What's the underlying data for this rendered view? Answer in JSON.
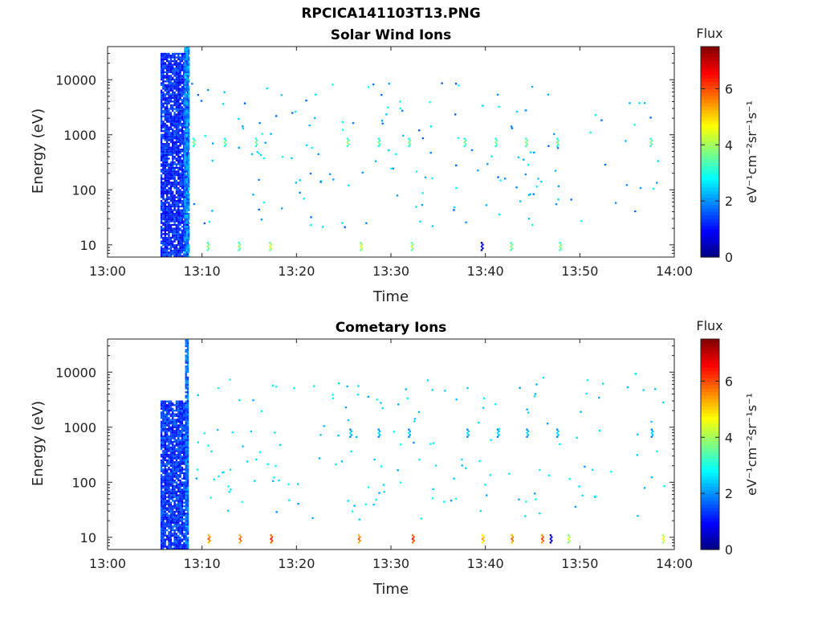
{
  "figure": {
    "title": "RPCICA141103T13.PNG"
  },
  "colorbar": {
    "label": "Flux",
    "unit_label": "eV⁻¹cm⁻²sr⁻¹s⁻¹",
    "min": 0,
    "max": 7.5,
    "ticks": [
      0,
      2,
      4,
      6
    ],
    "colormap": "jet",
    "colors": [
      "#00007f",
      "#0000ff",
      "#007fff",
      "#00ffff",
      "#7fff7f",
      "#ffff00",
      "#ff7f00",
      "#ff0000",
      "#7f0000"
    ]
  },
  "chart_data": [
    {
      "type": "heatmap",
      "title": "Solar Wind Ions",
      "xlabel": "Time",
      "ylabel": "Energy (eV)",
      "x_ticks": [
        "13:00",
        "13:10",
        "13:20",
        "13:30",
        "13:40",
        "13:50",
        "14:00"
      ],
      "xlim_min": [
        0,
        60
      ],
      "y_scale": "log",
      "y_ticks": [
        10,
        100,
        1000,
        10000
      ],
      "y_tick_labels": [
        "10",
        "100",
        "1000",
        "10000"
      ],
      "ylim": [
        6,
        40000
      ],
      "grid": false,
      "features": [
        {
          "t_start": 5.6,
          "t_end": 8.6,
          "e_low": 6,
          "e_high": 30000,
          "flux": 1.2,
          "kind": "burst"
        },
        {
          "t_start": 8.1,
          "t_end": 8.6,
          "e_low": 6,
          "e_high": 40000,
          "flux": 2.0,
          "kind": "burst"
        },
        {
          "t": 9.0,
          "e": 700,
          "flux": 3.8
        },
        {
          "t": 12.3,
          "e": 700,
          "flux": 3.8
        },
        {
          "t": 15.6,
          "e": 700,
          "flux": 3.8
        },
        {
          "t": 25.3,
          "e": 700,
          "flux": 4.0
        },
        {
          "t": 28.6,
          "e": 700,
          "flux": 3.8
        },
        {
          "t": 31.8,
          "e": 700,
          "flux": 3.8
        },
        {
          "t": 37.7,
          "e": 700,
          "flux": 3.8
        },
        {
          "t": 41.0,
          "e": 700,
          "flux": 3.8
        },
        {
          "t": 44.2,
          "e": 700,
          "flux": 4.0
        },
        {
          "t": 47.5,
          "e": 700,
          "flux": 3.8
        },
        {
          "t": 57.4,
          "e": 700,
          "flux": 3.8
        },
        {
          "t": 10.5,
          "e": 9,
          "flux": 4.0
        },
        {
          "t": 13.8,
          "e": 9,
          "flux": 4.0
        },
        {
          "t": 17.1,
          "e": 9,
          "flux": 4.5
        },
        {
          "t": 26.7,
          "e": 9,
          "flux": 4.5
        },
        {
          "t": 32.1,
          "e": 9,
          "flux": 4.3
        },
        {
          "t": 39.5,
          "e": 9,
          "flux": 1.0
        },
        {
          "t": 42.6,
          "e": 9,
          "flux": 4.0
        },
        {
          "t": 47.8,
          "e": 9,
          "flux": 4.0
        }
      ]
    },
    {
      "type": "heatmap",
      "title": "Cometary Ions",
      "xlabel": "Time",
      "ylabel": "Energy (eV)",
      "x_ticks": [
        "13:00",
        "13:10",
        "13:20",
        "13:30",
        "13:40",
        "13:50",
        "14:00"
      ],
      "xlim_min": [
        0,
        60
      ],
      "y_scale": "log",
      "y_ticks": [
        10,
        100,
        1000,
        10000
      ],
      "y_tick_labels": [
        "10",
        "100",
        "1000",
        "10000"
      ],
      "ylim": [
        6,
        40000
      ],
      "grid": false,
      "features": [
        {
          "t_start": 5.6,
          "t_end": 8.6,
          "e_low": 6,
          "e_high": 3000,
          "flux": 1.3,
          "kind": "burst"
        },
        {
          "t_start": 8.2,
          "t_end": 8.6,
          "e_low": 6,
          "e_high": 40000,
          "flux": 1.8,
          "kind": "burst"
        },
        {
          "t": 10.6,
          "e": 9,
          "flux": 6.0
        },
        {
          "t": 13.9,
          "e": 9,
          "flux": 6.0
        },
        {
          "t": 17.2,
          "e": 9,
          "flux": 6.5
        },
        {
          "t": 26.5,
          "e": 9,
          "flux": 6.0
        },
        {
          "t": 32.2,
          "e": 9,
          "flux": 6.5
        },
        {
          "t": 39.6,
          "e": 9,
          "flux": 5.5
        },
        {
          "t": 42.7,
          "e": 9,
          "flux": 6.0
        },
        {
          "t": 45.9,
          "e": 9,
          "flux": 6.3
        },
        {
          "t": 48.7,
          "e": 9,
          "flux": 4.5
        },
        {
          "t": 58.7,
          "e": 9,
          "flux": 4.8
        },
        {
          "t": 46.8,
          "e": 9,
          "flux": 1.0
        },
        {
          "t": 25.6,
          "e": 750,
          "flux": 2.7
        },
        {
          "t": 28.6,
          "e": 750,
          "flux": 2.7
        },
        {
          "t": 31.8,
          "e": 750,
          "flux": 2.7
        },
        {
          "t": 38.0,
          "e": 750,
          "flux": 2.7
        },
        {
          "t": 41.2,
          "e": 750,
          "flux": 2.7
        },
        {
          "t": 44.3,
          "e": 750,
          "flux": 2.7
        },
        {
          "t": 47.5,
          "e": 750,
          "flux": 2.7
        },
        {
          "t": 57.5,
          "e": 750,
          "flux": 2.7
        }
      ]
    }
  ]
}
